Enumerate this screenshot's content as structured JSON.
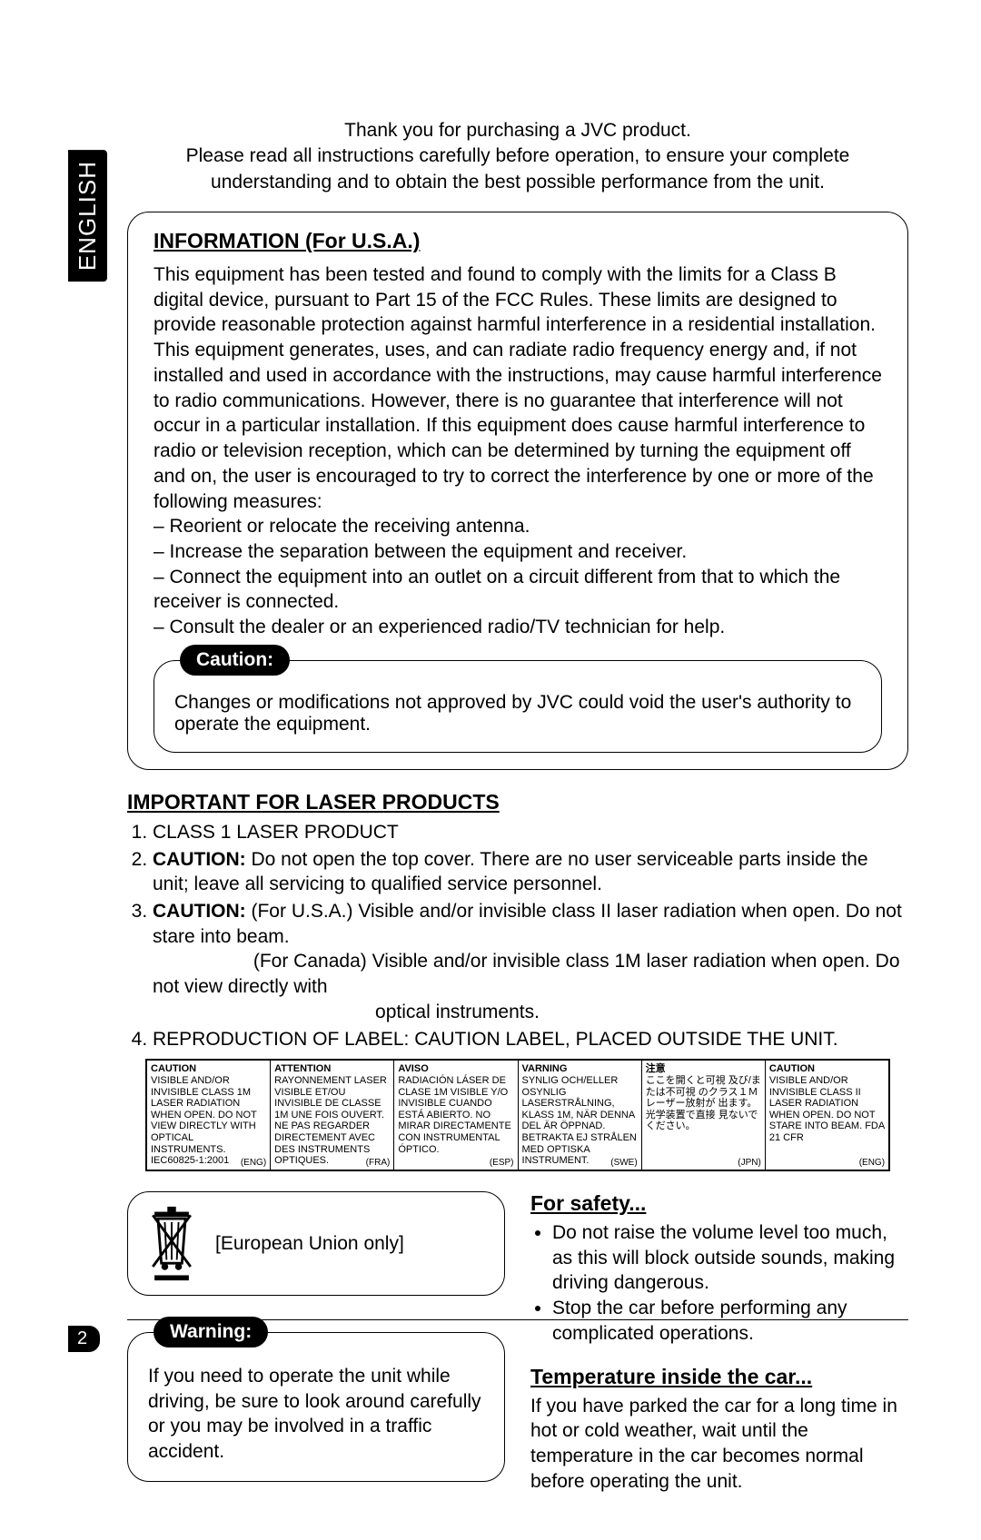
{
  "lang_tab": "ENGLISH",
  "intro_line1": "Thank you for purchasing a JVC product.",
  "intro_line2": "Please read all instructions carefully before operation, to ensure your complete understanding and to obtain the best possible performance from the unit.",
  "info": {
    "heading": "INFORMATION (For U.S.A.)",
    "body": "This equipment has been tested and found to comply with the limits for a Class B digital device, pursuant to Part 15 of the FCC Rules. These limits are designed to provide reasonable protection against harmful interference in a residential installation. This equipment generates, uses, and can radiate radio frequency energy and, if not installed and used in accordance with the instructions, may cause harmful interference to radio communications. However, there is no guarantee that interference will not occur in a particular installation. If this equipment does cause harmful interference to radio or television reception, which can be determined by turning the equipment off and on, the user is encouraged to try to correct the interference by one or more of the following measures:",
    "measures": [
      "Reorient or relocate the receiving antenna.",
      "Increase the separation between the equipment and receiver.",
      "Connect the equipment into an outlet on a circuit different from that to which the receiver is connected.",
      "Consult the dealer or an experienced radio/TV technician for help."
    ]
  },
  "caution": {
    "badge": "Caution:",
    "text": "Changes or modifications not approved by JVC could void the user's authority to operate the equipment."
  },
  "laser": {
    "heading": "IMPORTANT FOR LASER PRODUCTS",
    "items": [
      "CLASS 1 LASER PRODUCT",
      "<b>CAUTION:</b> Do not open the top cover. There are no user serviceable parts inside the unit; leave all servicing to qualified service personnel.",
      "<b>CAUTION:</b>  (For U.S.A.)     Visible and/or invisible class II laser radiation when open. Do not stare into beam.<br>&nbsp;&nbsp;&nbsp;&nbsp;&nbsp;&nbsp;&nbsp;&nbsp;&nbsp;&nbsp;&nbsp;&nbsp;&nbsp;&nbsp;&nbsp;&nbsp;&nbsp;&nbsp;&nbsp;(For Canada)  Visible and/or invisible class 1M laser radiation when open. Do not view directly with<br>&nbsp;&nbsp;&nbsp;&nbsp;&nbsp;&nbsp;&nbsp;&nbsp;&nbsp;&nbsp;&nbsp;&nbsp;&nbsp;&nbsp;&nbsp;&nbsp;&nbsp;&nbsp;&nbsp;&nbsp;&nbsp;&nbsp;&nbsp;&nbsp;&nbsp;&nbsp;&nbsp;&nbsp;&nbsp;&nbsp;&nbsp;&nbsp;&nbsp;&nbsp;&nbsp;&nbsp;&nbsp;&nbsp;&nbsp;&nbsp;&nbsp;&nbsp;optical instruments.",
      "REPRODUCTION OF LABEL: CAUTION LABEL, PLACED OUTSIDE THE UNIT."
    ]
  },
  "label_table": [
    {
      "hd": "CAUTION",
      "body": "VISIBLE AND/OR INVISIBLE CLASS 1M LASER RADIATION WHEN OPEN. DO NOT VIEW DIRECTLY WITH OPTICAL INSTRUMENTS. IEC60825-1:2001",
      "lg": "(ENG)"
    },
    {
      "hd": "ATTENTION",
      "body": "RAYONNEMENT LASER VISIBLE ET/OU INVISIBLE DE CLASSE 1M UNE FOIS OUVERT. NE PAS REGARDER DIRECTEMENT AVEC DES INSTRUMENTS OPTIQUES.",
      "lg": "(FRA)"
    },
    {
      "hd": "AVISO",
      "body": "RADIACIÓN LÁSER DE CLASE 1M VISIBLE Y/O INVISIBLE CUANDO ESTÁ ABIERTO. NO MIRAR DIRECTAMENTE CON INSTRUMENTAL ÓPTICO.",
      "lg": "(ESP)"
    },
    {
      "hd": "VARNING",
      "body": "SYNLIG OCH/ELLER OSYNLIG LASERSTRÅLNING, KLASS 1M, NÄR DENNA DEL ÄR ÖPPNAD. BETRAKTA EJ STRÅLEN MED OPTISKA INSTRUMENT.",
      "lg": "(SWE)"
    },
    {
      "hd": "注意",
      "body": "ここを開くと可視 及び/または不可視 のクラス１Ｍ レーザー放射が 出ます。 光学装置で直接 見ないでください。",
      "lg": "(JPN)"
    },
    {
      "hd": "CAUTION",
      "body": "VISIBLE AND/OR INVISIBLE CLASS II LASER RADIATION WHEN OPEN. DO NOT STARE INTO BEAM. FDA 21 CFR",
      "lg": "(ENG)"
    }
  ],
  "eu_text": "[European Union only]",
  "warning": {
    "badge": "Warning:",
    "text": "If you need to operate the unit while driving, be sure to look around carefully or you may be involved in a traffic accident."
  },
  "safety": {
    "heading": "For safety...",
    "items": [
      "Do not raise the volume level too much, as this will block outside sounds, making driving dangerous.",
      "Stop the car before performing any complicated operations."
    ]
  },
  "temperature": {
    "heading": "Temperature inside the car...",
    "text": "If you have parked the car for a long time in hot or cold weather, wait until the temperature in the car becomes normal before operating the unit."
  },
  "page_number": "2"
}
